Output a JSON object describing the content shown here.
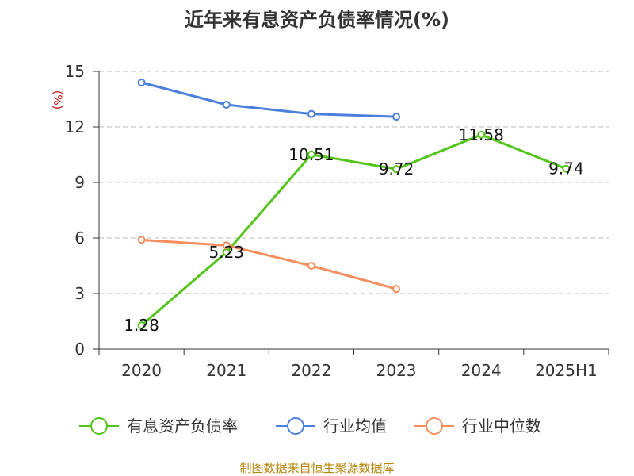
{
  "chart_data": {
    "type": "line",
    "title": "近年来有息资产负债率情况(%)",
    "ylabel": "(%)",
    "xlabel": "",
    "categories": [
      "2020",
      "2021",
      "2022",
      "2023",
      "2024",
      "2025H1"
    ],
    "yticks": [
      "0",
      "3",
      "6",
      "9",
      "12",
      "15"
    ],
    "ylim": [
      0,
      15
    ],
    "grid": true,
    "legend_position": "bottom",
    "series": [
      {
        "name": "有息资产负债率",
        "color": "#52c41a",
        "values": [
          1.28,
          5.23,
          10.51,
          9.72,
          11.58,
          9.74
        ],
        "labels": [
          "1.28",
          "5.23",
          "10.51",
          "9.72",
          "11.58",
          "9.74"
        ]
      },
      {
        "name": "行业均值",
        "color": "#4a7fdb",
        "values": [
          14.4,
          13.2,
          12.7,
          12.55,
          null,
          null
        ]
      },
      {
        "name": "行业中位数",
        "color": "#f58d5c",
        "values": [
          5.9,
          5.6,
          4.5,
          3.25,
          null,
          null
        ]
      }
    ]
  },
  "source_note": "制图数据来自恒生聚源数据库"
}
